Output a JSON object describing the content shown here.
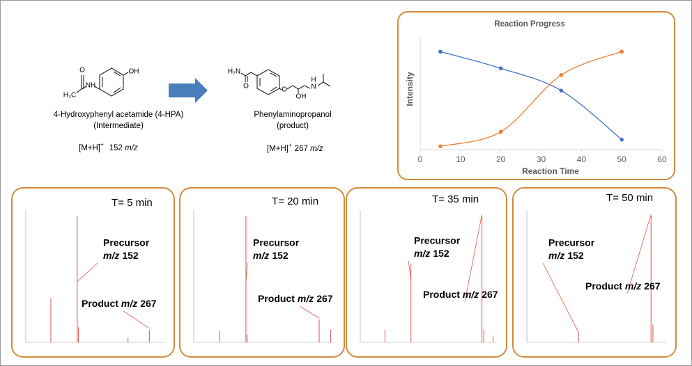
{
  "reactant": {
    "atoms": [
      "OH",
      "NH",
      "O",
      "H₃C"
    ],
    "name": "4-Hydroxyphenyl acetamide (4-HPA)",
    "role": "(Intermediate)",
    "ion": "[M+H]",
    "charge": "+",
    "mz": "152",
    "unit": "m/z"
  },
  "product": {
    "atoms": [
      "H₂N",
      "O",
      "O",
      "OH",
      "N",
      "H"
    ],
    "name": "Phenylaminopropanol",
    "role": "(product)",
    "ion": "[M+H]",
    "charge": "+",
    "mz": "267",
    "unit": "m/z"
  },
  "chart_data": {
    "type": "line",
    "title": "Reaction Progress",
    "x_label": "Reaction Time",
    "y_label": "Intensity",
    "x": [
      5,
      20,
      35,
      50
    ],
    "xlim": [
      0,
      60
    ],
    "xticks": [
      0,
      10,
      20,
      30,
      40,
      50,
      60
    ],
    "ylim": [
      0,
      100
    ],
    "series": [
      {
        "color": "#4472c4",
        "values": [
          88,
          73,
          53,
          9
        ]
      },
      {
        "color": "#ed7d31",
        "values": [
          3,
          16,
          67,
          88
        ]
      }
    ]
  },
  "spectra": {
    "xlim": [
      70,
      290
    ],
    "ylim": [
      0,
      100
    ],
    "color": "#d9534f",
    "panels": [
      {
        "time": "T= 5 min",
        "precursor_label": "Precursor",
        "precursor_unit": "m/z",
        "precursor_mz": "152",
        "product_label": "Product",
        "product_unit": "m/z",
        "product_mz": "267",
        "peaks": [
          [
            110,
            35
          ],
          [
            152,
            100
          ],
          [
            154,
            12
          ],
          [
            233,
            4
          ],
          [
            267,
            10
          ]
        ]
      },
      {
        "time": "T= 20 min",
        "precursor_label": "Precursor",
        "precursor_unit": "m/z",
        "precursor_mz": "152",
        "product_label": "Product",
        "product_unit": "m/z",
        "product_mz": "267",
        "peaks": [
          [
            110,
            9
          ],
          [
            152,
            100
          ],
          [
            154,
            6
          ],
          [
            267,
            18
          ],
          [
            285,
            10
          ]
        ]
      },
      {
        "time": "T= 35 min",
        "precursor_label": "Precursor",
        "precursor_unit": "m/z",
        "precursor_mz": "152",
        "product_label": "Product",
        "product_unit": "m/z",
        "product_mz": "267",
        "peaks": [
          [
            110,
            10
          ],
          [
            152,
            62
          ],
          [
            267,
            100
          ],
          [
            270,
            10
          ],
          [
            285,
            5
          ]
        ]
      },
      {
        "time": "T= 50 min",
        "precursor_label": "Precursor",
        "precursor_unit": "m/z",
        "precursor_mz": "152",
        "product_label": "Product",
        "product_unit": "m/z",
        "product_mz": "267",
        "peaks": [
          [
            152,
            8
          ],
          [
            267,
            100
          ],
          [
            270,
            14
          ]
        ]
      }
    ]
  }
}
